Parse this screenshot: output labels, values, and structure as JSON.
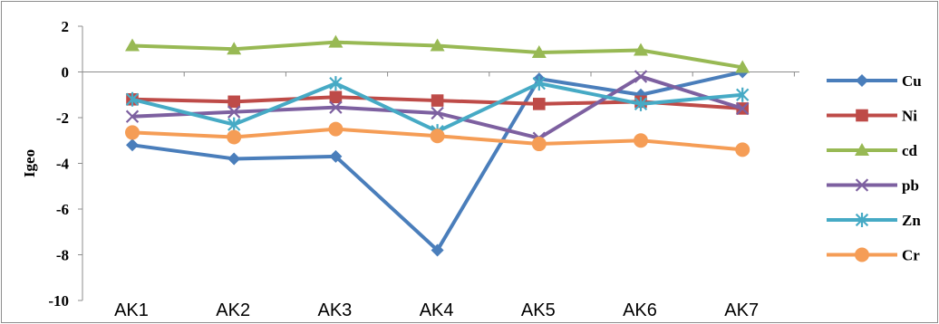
{
  "chart_data": {
    "type": "line",
    "title": "",
    "xlabel": "",
    "ylabel": "Igeo",
    "ylim": [
      -10,
      2
    ],
    "yticks": [
      2,
      0,
      -2,
      -4,
      -6,
      -8,
      -10
    ],
    "categories": [
      "AK1",
      "AK2",
      "AK3",
      "AK4",
      "AK5",
      "AK6",
      "AK7"
    ],
    "legend_position": "right",
    "grid": false,
    "series": [
      {
        "name": "Cu",
        "color": "#4a7ebb",
        "marker": "diamond",
        "values": [
          -3.2,
          -3.8,
          -3.7,
          -7.8,
          -0.3,
          -1.0,
          0.0
        ]
      },
      {
        "name": "Ni",
        "color": "#be4b48",
        "marker": "square",
        "values": [
          -1.2,
          -1.3,
          -1.1,
          -1.25,
          -1.4,
          -1.3,
          -1.6
        ]
      },
      {
        "name": "cd",
        "color": "#98b954",
        "marker": "triangle",
        "values": [
          1.15,
          1.0,
          1.3,
          1.15,
          0.85,
          0.95,
          0.2
        ]
      },
      {
        "name": "pb",
        "color": "#7d60a0",
        "marker": "x",
        "values": [
          -1.95,
          -1.75,
          -1.55,
          -1.8,
          -2.9,
          -0.2,
          -1.6
        ]
      },
      {
        "name": "Zn",
        "color": "#46aac5",
        "marker": "star",
        "values": [
          -1.2,
          -2.3,
          -0.5,
          -2.6,
          -0.5,
          -1.4,
          -1.0
        ]
      },
      {
        "name": "Cr",
        "color": "#f59d56",
        "marker": "circle",
        "values": [
          -2.65,
          -2.85,
          -2.5,
          -2.8,
          -3.15,
          -3.0,
          -3.4
        ]
      }
    ]
  }
}
